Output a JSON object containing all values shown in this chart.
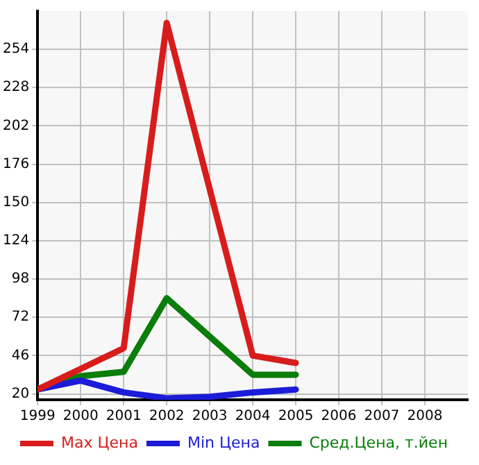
{
  "chart_data": {
    "type": "line",
    "x": [
      1999,
      2000,
      2001,
      2002,
      2003,
      2004,
      2005
    ],
    "series": [
      {
        "name": "Max Цена",
        "color": "#d81c1c",
        "values": [
          23,
          37,
          51,
          272,
          159,
          46,
          41
        ]
      },
      {
        "name": "Min Цена",
        "color": "#1c1cd8",
        "values": [
          23,
          29,
          21,
          17,
          18,
          21,
          23
        ]
      },
      {
        "name": "Сред.Цена, т.йен",
        "color": "#0a7d0a",
        "values": [
          23,
          32,
          35,
          85,
          59,
          33,
          33
        ]
      }
    ],
    "xlim": [
      1999,
      2009
    ],
    "xticks": [
      1999,
      2000,
      2001,
      2002,
      2003,
      2004,
      2005,
      2006,
      2007,
      2008
    ],
    "ylim": [
      16,
      280
    ],
    "yticks": [
      20,
      46,
      72,
      98,
      124,
      150,
      176,
      202,
      228,
      254
    ],
    "grid": true,
    "legend": "bottom",
    "marker": "none",
    "line_style": "solid"
  }
}
